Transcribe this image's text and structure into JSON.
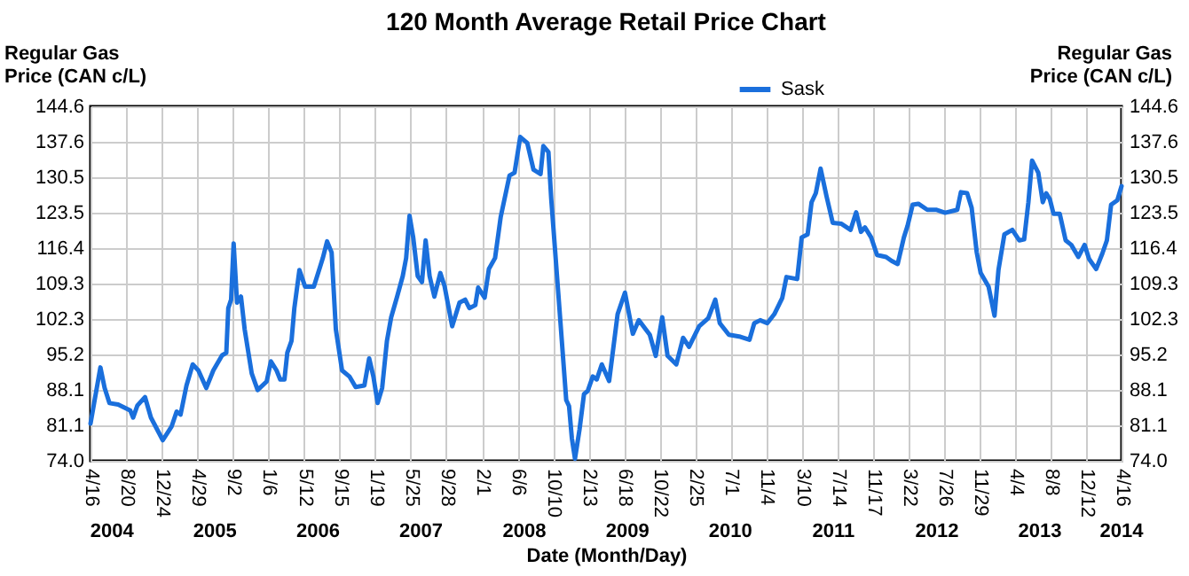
{
  "chart_data": {
    "type": "line",
    "title": "120 Month Average Retail Price Chart",
    "xlabel": "Date (Month/Day)",
    "ylabel": "Regular Gas Price (CAN c/L)",
    "y2label": "Regular Gas Price (CAN c/L)",
    "xlim": [
      "2004-04-16",
      "2014-04-16"
    ],
    "xticks": [
      {
        "value": "2004-04-16",
        "label": "4/16"
      },
      {
        "value": "2004-08-20",
        "label": "8/20"
      },
      {
        "value": "2004-12-24",
        "label": "12/24"
      },
      {
        "value": "2005-04-29",
        "label": "4/29"
      },
      {
        "value": "2005-09-02",
        "label": "9/2"
      },
      {
        "value": "2006-01-06",
        "label": "1/6"
      },
      {
        "value": "2006-05-12",
        "label": "5/12"
      },
      {
        "value": "2006-09-15",
        "label": "9/15"
      },
      {
        "value": "2007-01-19",
        "label": "1/19"
      },
      {
        "value": "2007-05-25",
        "label": "5/25"
      },
      {
        "value": "2007-09-28",
        "label": "9/28"
      },
      {
        "value": "2008-02-01",
        "label": "2/1"
      },
      {
        "value": "2008-06-06",
        "label": "6/6"
      },
      {
        "value": "2008-10-10",
        "label": "10/10"
      },
      {
        "value": "2009-02-13",
        "label": "2/13"
      },
      {
        "value": "2009-06-18",
        "label": "6/18"
      },
      {
        "value": "2009-10-22",
        "label": "10/22"
      },
      {
        "value": "2010-02-25",
        "label": "2/25"
      },
      {
        "value": "2010-07-01",
        "label": "7/1"
      },
      {
        "value": "2010-11-04",
        "label": "11/4"
      },
      {
        "value": "2011-03-10",
        "label": "3/10"
      },
      {
        "value": "2011-07-14",
        "label": "7/14"
      },
      {
        "value": "2011-11-17",
        "label": "11/17"
      },
      {
        "value": "2012-03-22",
        "label": "3/22"
      },
      {
        "value": "2012-07-26",
        "label": "7/26"
      },
      {
        "value": "2012-11-29",
        "label": "11/29"
      },
      {
        "value": "2013-04-04",
        "label": "4/4"
      },
      {
        "value": "2013-08-08",
        "label": "8/8"
      },
      {
        "value": "2013-12-12",
        "label": "12/12"
      },
      {
        "value": "2014-04-16",
        "label": "4/16"
      }
    ],
    "x2lim": [
      "2004-04-16",
      "2014-04-16"
    ],
    "x2ticks": [
      {
        "value": "2004-07-01",
        "label": "2004"
      },
      {
        "value": "2005-07-01",
        "label": "2005"
      },
      {
        "value": "2006-07-01",
        "label": "2006"
      },
      {
        "value": "2007-07-01",
        "label": "2007"
      },
      {
        "value": "2008-07-01",
        "label": "2008"
      },
      {
        "value": "2009-07-01",
        "label": "2009"
      },
      {
        "value": "2010-07-01",
        "label": "2010"
      },
      {
        "value": "2011-07-01",
        "label": "2011"
      },
      {
        "value": "2012-07-01",
        "label": "2012"
      },
      {
        "value": "2013-07-01",
        "label": "2013"
      },
      {
        "value": "2014-04-16",
        "label": "2014"
      }
    ],
    "ylim": [
      74.0,
      144.6
    ],
    "yticks": [
      {
        "value": 74.0,
        "label": "74.0"
      },
      {
        "value": 81.1,
        "label": "81.1"
      },
      {
        "value": 88.1,
        "label": "88.1"
      },
      {
        "value": 95.2,
        "label": "95.2"
      },
      {
        "value": 102.3,
        "label": "102.3"
      },
      {
        "value": 109.3,
        "label": "109.3"
      },
      {
        "value": 116.4,
        "label": "116.4"
      },
      {
        "value": 123.5,
        "label": "123.5"
      },
      {
        "value": 130.5,
        "label": "130.5"
      },
      {
        "value": 137.6,
        "label": "137.6"
      },
      {
        "value": 144.6,
        "label": "144.6"
      }
    ],
    "y2lim": [
      74.0,
      144.6
    ],
    "y2ticks": [
      {
        "value": 74.0,
        "label": "74.0"
      },
      {
        "value": 81.1,
        "label": "81.1"
      },
      {
        "value": 88.1,
        "label": "88.1"
      },
      {
        "value": 95.2,
        "label": "95.2"
      },
      {
        "value": 102.3,
        "label": "102.3"
      },
      {
        "value": 109.3,
        "label": "109.3"
      },
      {
        "value": 116.4,
        "label": "116.4"
      },
      {
        "value": 123.5,
        "label": "123.5"
      },
      {
        "value": 130.5,
        "label": "130.5"
      },
      {
        "value": 137.6,
        "label": "137.6"
      },
      {
        "value": 144.6,
        "label": "144.6"
      }
    ],
    "grid": true,
    "legend": "top",
    "marker": "none",
    "line_style": "solid",
    "x": [
      "2004-04-16",
      "2004-05-21",
      "2004-06-05",
      "2004-06-22",
      "2004-07-23",
      "2004-09-04",
      "2004-09-14",
      "2004-09-29",
      "2004-10-26",
      "2004-11-16",
      "2004-12-28",
      "2005-01-28",
      "2005-02-15",
      "2005-03-01",
      "2005-03-22",
      "2005-04-13",
      "2005-05-03",
      "2005-05-31",
      "2005-06-25",
      "2005-07-26",
      "2005-08-10",
      "2005-08-17",
      "2005-08-27",
      "2005-09-05",
      "2005-09-17",
      "2005-10-01",
      "2005-10-14",
      "2005-11-08",
      "2005-11-29",
      "2005-12-31",
      "2006-01-15",
      "2006-02-04",
      "2006-02-17",
      "2006-03-04",
      "2006-03-14",
      "2006-03-29",
      "2006-04-08",
      "2006-04-26",
      "2006-05-16",
      "2006-06-16",
      "2006-07-08",
      "2006-07-18",
      "2006-08-02",
      "2006-08-18",
      "2006-09-02",
      "2006-09-24",
      "2006-10-20",
      "2006-11-11",
      "2006-12-12",
      "2006-12-29",
      "2007-01-13",
      "2007-01-28",
      "2007-02-13",
      "2007-03-02",
      "2007-03-17",
      "2007-04-07",
      "2007-04-27",
      "2007-05-09",
      "2007-05-21",
      "2007-06-03",
      "2007-06-19",
      "2007-07-04",
      "2007-07-17",
      "2007-07-31",
      "2007-08-17",
      "2007-09-07",
      "2007-09-22",
      "2007-10-19",
      "2007-11-14",
      "2007-12-04",
      "2007-12-19",
      "2008-01-09",
      "2008-01-19",
      "2008-02-11",
      "2008-02-26",
      "2008-03-19",
      "2008-04-08",
      "2008-05-09",
      "2008-05-27",
      "2008-06-16",
      "2008-07-11",
      "2008-08-02",
      "2008-08-27",
      "2008-09-06",
      "2008-09-24",
      "2008-10-04",
      "2008-10-29",
      "2008-11-26",
      "2008-12-06",
      "2008-12-16",
      "2008-12-27",
      "2009-01-12",
      "2009-01-28",
      "2009-02-10",
      "2009-02-28",
      "2009-03-14",
      "2009-04-01",
      "2009-04-27",
      "2009-05-27",
      "2009-06-22",
      "2009-07-20",
      "2009-08-10",
      "2009-09-18",
      "2009-10-09",
      "2009-11-01",
      "2009-11-20",
      "2009-12-21",
      "2010-01-14",
      "2010-02-04",
      "2010-03-12",
      "2010-04-13",
      "2010-05-08",
      "2010-05-24",
      "2010-06-25",
      "2010-08-05",
      "2010-09-06",
      "2010-09-23",
      "2010-10-14",
      "2010-11-08",
      "2010-12-03",
      "2010-12-31",
      "2011-01-15",
      "2011-02-22",
      "2011-03-10",
      "2011-03-31",
      "2011-04-14",
      "2011-04-29",
      "2011-05-16",
      "2011-06-06",
      "2011-06-28",
      "2011-07-29",
      "2011-08-30",
      "2011-09-19",
      "2011-10-06",
      "2011-10-20",
      "2011-11-11",
      "2011-12-02",
      "2012-01-03",
      "2012-01-23",
      "2012-02-13",
      "2012-03-06",
      "2012-03-19",
      "2012-04-06",
      "2012-04-26",
      "2012-05-28",
      "2012-06-28",
      "2012-07-30",
      "2012-09-11",
      "2012-09-24",
      "2012-10-16",
      "2012-11-01",
      "2012-11-19",
      "2012-12-03",
      "2012-12-31",
      "2013-01-21",
      "2013-02-04",
      "2013-02-25",
      "2013-03-25",
      "2013-04-19",
      "2013-05-06",
      "2013-05-21",
      "2013-06-03",
      "2013-06-25",
      "2013-07-11",
      "2013-07-23",
      "2013-08-05",
      "2013-08-18",
      "2013-09-09",
      "2013-09-30",
      "2013-10-20",
      "2013-11-14",
      "2013-12-06",
      "2013-12-22",
      "2014-01-16",
      "2014-02-07",
      "2014-02-23",
      "2014-03-10",
      "2014-04-01",
      "2014-04-16"
    ],
    "series": [
      {
        "name": "Sask",
        "color": "#1a6fdc",
        "values": [
          81.4,
          92.6,
          88.5,
          85.5,
          85.2,
          84.0,
          82.6,
          85.0,
          86.7,
          82.6,
          78.1,
          80.8,
          83.8,
          83.2,
          89.0,
          93.2,
          92.0,
          88.5,
          92.0,
          95.0,
          95.5,
          104.4,
          106.1,
          117.3,
          105.5,
          106.7,
          100.2,
          91.4,
          88.1,
          89.8,
          93.8,
          92.0,
          90.2,
          90.2,
          95.5,
          97.9,
          104.4,
          112.0,
          108.7,
          108.7,
          112.6,
          114.4,
          117.7,
          115.5,
          100.2,
          92.0,
          90.8,
          88.7,
          89.0,
          94.4,
          90.8,
          85.5,
          88.5,
          97.9,
          102.6,
          106.7,
          110.8,
          114.4,
          122.8,
          118.5,
          110.8,
          109.6,
          117.9,
          110.8,
          106.7,
          111.4,
          108.8,
          100.8,
          105.5,
          106.1,
          104.4,
          105.0,
          108.5,
          106.5,
          112.2,
          114.4,
          122.6,
          130.8,
          131.4,
          138.5,
          137.3,
          132.0,
          131.1,
          136.7,
          135.5,
          126.1,
          107.3,
          86.1,
          84.9,
          78.5,
          74.4,
          80.2,
          87.3,
          87.9,
          90.8,
          90.2,
          93.2,
          89.9,
          103.2,
          107.5,
          99.3,
          102.0,
          99.1,
          94.9,
          102.6,
          94.9,
          93.2,
          98.5,
          96.7,
          100.8,
          102.4,
          106.1,
          101.4,
          99.1,
          98.7,
          98.1,
          101.4,
          102.0,
          101.4,
          103.2,
          106.4,
          110.6,
          110.2,
          118.5,
          119.1,
          125.5,
          127.3,
          132.2,
          126.7,
          121.4,
          121.2,
          120.0,
          123.5,
          119.6,
          120.5,
          118.5,
          115.0,
          114.6,
          113.8,
          113.2,
          118.5,
          120.8,
          125.0,
          125.2,
          124.0,
          124.0,
          123.4,
          124.0,
          127.5,
          127.3,
          124.4,
          115.5,
          111.4,
          108.7,
          102.9,
          112.0,
          119.1,
          120.0,
          117.9,
          118.1,
          125.5,
          133.8,
          131.4,
          125.5,
          127.3,
          126.1,
          123.2,
          123.2,
          117.9,
          117.0,
          114.6,
          117.0,
          114.2,
          112.2,
          115.3,
          117.9,
          125.0,
          125.9,
          128.7
        ]
      }
    ]
  }
}
